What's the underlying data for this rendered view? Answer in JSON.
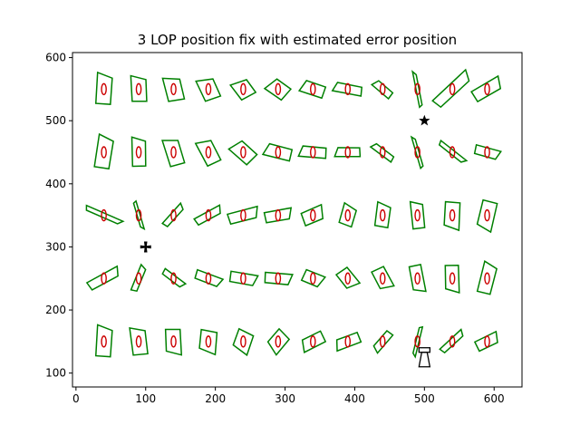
{
  "chart_data": {
    "type": "scatter",
    "title": "3 LOP position fix with estimated error position",
    "xlabel": "",
    "ylabel": "",
    "xlim": [
      -5,
      640
    ],
    "ylim": [
      78,
      608
    ],
    "xticks": [
      0,
      100,
      200,
      300,
      400,
      500,
      600
    ],
    "yticks": [
      100,
      200,
      300,
      400,
      500,
      600
    ],
    "grid": false,
    "legend": "none",
    "colors": {
      "error_polygon": "#008000",
      "error_ellipse": "#cc0000",
      "marker": "#000000"
    },
    "series": [
      {
        "marker": "error-polygon-with-ellipse",
        "points": [
          {
            "x": 40,
            "y": 550,
            "rot": -80,
            "len": 34,
            "wid": 20
          },
          {
            "x": 90,
            "y": 550,
            "rot": -85,
            "len": 28,
            "wid": 20
          },
          {
            "x": 140,
            "y": 550,
            "rot": -95,
            "len": 26,
            "wid": 22
          },
          {
            "x": 190,
            "y": 550,
            "rot": -105,
            "len": 24,
            "wid": 22
          },
          {
            "x": 240,
            "y": 550,
            "rot": -115,
            "len": 20,
            "wid": 22
          },
          {
            "x": 290,
            "y": 550,
            "rot": -135,
            "len": 22,
            "wid": 20
          },
          {
            "x": 340,
            "y": 550,
            "rot": -155,
            "len": 26,
            "wid": 16
          },
          {
            "x": 390,
            "y": 550,
            "rot": -165,
            "len": 32,
            "wid": 12
          },
          {
            "x": 440,
            "y": 550,
            "rot": -135,
            "len": 24,
            "wid": 10
          },
          {
            "x": 490,
            "y": 550,
            "rot": -100,
            "len": 40,
            "wid": 4
          },
          {
            "x": 540,
            "y": 550,
            "rot": -40,
            "len": 50,
            "wid": 14
          },
          {
            "x": 590,
            "y": 550,
            "rot": -25,
            "len": 34,
            "wid": 16
          },
          {
            "x": 40,
            "y": 450,
            "rot": -75,
            "len": 36,
            "wid": 20
          },
          {
            "x": 90,
            "y": 450,
            "rot": -85,
            "len": 32,
            "wid": 18
          },
          {
            "x": 140,
            "y": 450,
            "rot": -100,
            "len": 30,
            "wid": 20
          },
          {
            "x": 190,
            "y": 450,
            "rot": -110,
            "len": 28,
            "wid": 20
          },
          {
            "x": 240,
            "y": 450,
            "rot": -130,
            "len": 26,
            "wid": 20
          },
          {
            "x": 290,
            "y": 450,
            "rot": -160,
            "len": 30,
            "wid": 16
          },
          {
            "x": 340,
            "y": 450,
            "rot": -170,
            "len": 30,
            "wid": 14
          },
          {
            "x": 390,
            "y": 450,
            "rot": -175,
            "len": 28,
            "wid": 12
          },
          {
            "x": 440,
            "y": 450,
            "rot": -140,
            "len": 28,
            "wid": 8
          },
          {
            "x": 490,
            "y": 450,
            "rot": -105,
            "len": 36,
            "wid": 4
          },
          {
            "x": 540,
            "y": 450,
            "rot": 40,
            "len": 36,
            "wid": 6
          },
          {
            "x": 590,
            "y": 450,
            "rot": 20,
            "len": 28,
            "wid": 12
          },
          {
            "x": 40,
            "y": 350,
            "rot": 25,
            "len": 44,
            "wid": 6
          },
          {
            "x": 90,
            "y": 350,
            "rot": 75,
            "len": 32,
            "wid": 4
          },
          {
            "x": 140,
            "y": 350,
            "rot": -45,
            "len": 30,
            "wid": 8
          },
          {
            "x": 190,
            "y": 350,
            "rot": -25,
            "len": 32,
            "wid": 10
          },
          {
            "x": 240,
            "y": 350,
            "rot": -10,
            "len": 34,
            "wid": 14
          },
          {
            "x": 290,
            "y": 350,
            "rot": -5,
            "len": 30,
            "wid": 14
          },
          {
            "x": 340,
            "y": 350,
            "rot": -15,
            "len": 24,
            "wid": 18
          },
          {
            "x": 390,
            "y": 350,
            "rot": -65,
            "len": 22,
            "wid": 18
          },
          {
            "x": 440,
            "y": 350,
            "rot": -75,
            "len": 26,
            "wid": 18
          },
          {
            "x": 490,
            "y": 350,
            "rot": -90,
            "len": 30,
            "wid": 16
          },
          {
            "x": 540,
            "y": 350,
            "rot": 100,
            "len": 30,
            "wid": 20
          },
          {
            "x": 590,
            "y": 350,
            "rot": 110,
            "len": 32,
            "wid": 20
          },
          {
            "x": 40,
            "y": 250,
            "rot": -25,
            "len": 38,
            "wid": 12
          },
          {
            "x": 90,
            "y": 250,
            "rot": -65,
            "len": 30,
            "wid": 8
          },
          {
            "x": 140,
            "y": 250,
            "rot": 40,
            "len": 28,
            "wid": 8
          },
          {
            "x": 190,
            "y": 250,
            "rot": 25,
            "len": 30,
            "wid": 12
          },
          {
            "x": 240,
            "y": 250,
            "rot": 15,
            "len": 30,
            "wid": 14
          },
          {
            "x": 290,
            "y": 250,
            "rot": 10,
            "len": 30,
            "wid": 14
          },
          {
            "x": 340,
            "y": 250,
            "rot": 30,
            "len": 22,
            "wid": 16
          },
          {
            "x": 390,
            "y": 250,
            "rot": 60,
            "len": 22,
            "wid": 18
          },
          {
            "x": 440,
            "y": 250,
            "rot": 70,
            "len": 24,
            "wid": 18
          },
          {
            "x": 490,
            "y": 250,
            "rot": 85,
            "len": 30,
            "wid": 16
          },
          {
            "x": 540,
            "y": 250,
            "rot": 95,
            "len": 30,
            "wid": 18
          },
          {
            "x": 590,
            "y": 250,
            "rot": -70,
            "len": 34,
            "wid": 18
          },
          {
            "x": 40,
            "y": 150,
            "rot": -80,
            "len": 34,
            "wid": 20
          },
          {
            "x": 90,
            "y": 150,
            "rot": -90,
            "len": 30,
            "wid": 20
          },
          {
            "x": 140,
            "y": 150,
            "rot": 95,
            "len": 28,
            "wid": 20
          },
          {
            "x": 190,
            "y": 150,
            "rot": 105,
            "len": 24,
            "wid": 22
          },
          {
            "x": 240,
            "y": 150,
            "rot": 120,
            "len": 22,
            "wid": 22
          },
          {
            "x": 290,
            "y": 150,
            "rot": 140,
            "len": 22,
            "wid": 20
          },
          {
            "x": 340,
            "y": 150,
            "rot": 160,
            "len": 26,
            "wid": 16
          },
          {
            "x": 390,
            "y": 150,
            "rot": 165,
            "len": 28,
            "wid": 14
          },
          {
            "x": 440,
            "y": 150,
            "rot": 135,
            "len": 26,
            "wid": 10
          },
          {
            "x": 490,
            "y": 150,
            "rot": 105,
            "len": 34,
            "wid": 4
          },
          {
            "x": 540,
            "y": 150,
            "rot": -40,
            "len": 32,
            "wid": 8
          },
          {
            "x": 590,
            "y": 150,
            "rot": -20,
            "len": 26,
            "wid": 14
          }
        ]
      }
    ],
    "markers": [
      {
        "symbol": "star",
        "x": 500,
        "y": 500
      },
      {
        "symbol": "cross",
        "x": 100,
        "y": 300
      },
      {
        "symbol": "lighthouse",
        "x": 500,
        "y": 110
      }
    ]
  }
}
